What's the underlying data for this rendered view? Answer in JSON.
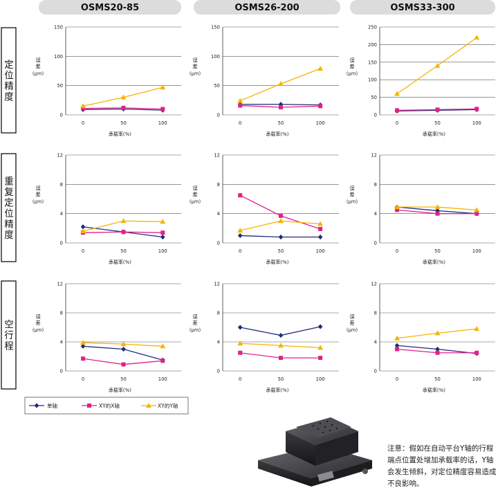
{
  "columns": [
    "OSMS20-85",
    "OSMS26-200",
    "OSMS33-300"
  ],
  "rows": [
    "定位精度",
    "重复定位精度",
    "空行程"
  ],
  "axis": {
    "ylabel": "误差(μm)",
    "xlabel": "承载率(%)"
  },
  "legend": [
    {
      "name": "单轴",
      "color": "#1f2a7a",
      "marker": "diamond"
    },
    {
      "name": "XY的X轴",
      "color": "#e0218a",
      "marker": "square"
    },
    {
      "name": "XY的Y轴",
      "color": "#f5b400",
      "marker": "triangle"
    }
  ],
  "note": "注意：假如在自动平台Y轴的行程端点位置处增加承载率的话，Y轴会发生倾斜，对定位精度容易造成不良影响。",
  "chart_data": [
    {
      "type": "line",
      "row": "定位精度",
      "column": "OSMS20-85",
      "categories": [
        "0",
        "50",
        "100"
      ],
      "ylim": [
        0,
        150
      ],
      "yticks": [
        0,
        50,
        100,
        150
      ],
      "series": [
        {
          "name": "单轴",
          "values": [
            9,
            10,
            8
          ]
        },
        {
          "name": "XY的X轴",
          "values": [
            11,
            12,
            10
          ]
        },
        {
          "name": "XY的Y轴",
          "values": [
            15,
            30,
            47
          ]
        }
      ]
    },
    {
      "type": "line",
      "row": "定位精度",
      "column": "OSMS26-200",
      "categories": [
        "0",
        "50",
        "100"
      ],
      "ylim": [
        0,
        150
      ],
      "yticks": [
        0,
        50,
        100,
        150
      ],
      "series": [
        {
          "name": "单轴",
          "values": [
            18,
            18,
            17
          ]
        },
        {
          "name": "XY的X轴",
          "values": [
            16,
            13,
            15
          ]
        },
        {
          "name": "XY的Y轴",
          "values": [
            24,
            53,
            79
          ]
        }
      ]
    },
    {
      "type": "line",
      "row": "定位精度",
      "column": "OSMS33-300",
      "categories": [
        "0",
        "50",
        "100"
      ],
      "ylim": [
        0,
        250
      ],
      "yticks": [
        0,
        50,
        100,
        150,
        200,
        250
      ],
      "series": [
        {
          "name": "单轴",
          "values": [
            11,
            13,
            15
          ]
        },
        {
          "name": "XY的X轴",
          "values": [
            13,
            15,
            17
          ]
        },
        {
          "name": "XY的Y轴",
          "values": [
            60,
            140,
            220
          ]
        }
      ]
    },
    {
      "type": "line",
      "row": "重复定位精度",
      "column": "OSMS20-85",
      "categories": [
        "0",
        "50",
        "100"
      ],
      "ylim": [
        0,
        12
      ],
      "yticks": [
        0,
        4,
        8,
        12
      ],
      "series": [
        {
          "name": "单轴",
          "values": [
            2.2,
            1.5,
            0.8
          ]
        },
        {
          "name": "XY的X轴",
          "values": [
            1.4,
            1.5,
            1.4
          ]
        },
        {
          "name": "XY的Y轴",
          "values": [
            1.6,
            3.0,
            2.9
          ]
        }
      ]
    },
    {
      "type": "line",
      "row": "重复定位精度",
      "column": "OSMS26-200",
      "categories": [
        "0",
        "50",
        "100"
      ],
      "ylim": [
        0,
        12
      ],
      "yticks": [
        0,
        4,
        8,
        12
      ],
      "series": [
        {
          "name": "单轴",
          "values": [
            1.0,
            0.8,
            0.8
          ]
        },
        {
          "name": "XY的X轴",
          "values": [
            6.5,
            3.7,
            1.9
          ]
        },
        {
          "name": "XY的Y轴",
          "values": [
            1.7,
            3.0,
            2.6
          ]
        }
      ]
    },
    {
      "type": "line",
      "row": "重复定位精度",
      "column": "OSMS33-300",
      "categories": [
        "0",
        "50",
        "100"
      ],
      "ylim": [
        0,
        12
      ],
      "yticks": [
        0,
        4,
        8,
        12
      ],
      "series": [
        {
          "name": "单轴",
          "values": [
            4.9,
            4.4,
            4.0
          ]
        },
        {
          "name": "XY的X轴",
          "values": [
            4.5,
            4.0,
            4.0
          ]
        },
        {
          "name": "XY的Y轴",
          "values": [
            4.9,
            4.9,
            4.5
          ]
        }
      ]
    },
    {
      "type": "line",
      "row": "空行程",
      "column": "OSMS20-85",
      "categories": [
        "0",
        "50",
        "100"
      ],
      "ylim": [
        0,
        12
      ],
      "yticks": [
        0,
        4,
        8,
        12
      ],
      "series": [
        {
          "name": "单轴",
          "values": [
            3.4,
            3.0,
            1.5
          ]
        },
        {
          "name": "XY的X轴",
          "values": [
            1.7,
            0.9,
            1.4
          ]
        },
        {
          "name": "XY的Y轴",
          "values": [
            3.9,
            3.7,
            3.4
          ]
        }
      ]
    },
    {
      "type": "line",
      "row": "空行程",
      "column": "OSMS26-200",
      "categories": [
        "0",
        "50",
        "100"
      ],
      "ylim": [
        0,
        12
      ],
      "yticks": [
        0,
        4,
        8,
        12
      ],
      "series": [
        {
          "name": "单轴",
          "values": [
            6.0,
            4.9,
            6.1
          ]
        },
        {
          "name": "XY的X轴",
          "values": [
            2.5,
            1.8,
            1.8
          ]
        },
        {
          "name": "XY的Y轴",
          "values": [
            3.8,
            3.5,
            3.2
          ]
        }
      ]
    },
    {
      "type": "line",
      "row": "空行程",
      "column": "OSMS33-300",
      "categories": [
        "0",
        "50",
        "100"
      ],
      "ylim": [
        0,
        12
      ],
      "yticks": [
        0,
        4,
        8,
        12
      ],
      "series": [
        {
          "name": "单轴",
          "values": [
            3.5,
            3.0,
            2.4
          ]
        },
        {
          "name": "XY的X轴",
          "values": [
            3.0,
            2.5,
            2.5
          ]
        },
        {
          "name": "XY的Y轴",
          "values": [
            4.5,
            5.2,
            5.8
          ]
        }
      ]
    }
  ]
}
